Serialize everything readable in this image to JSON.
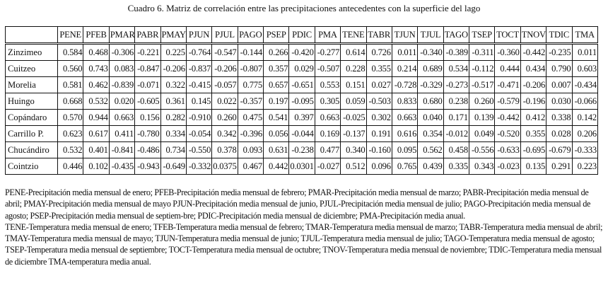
{
  "caption": "Cuadro 6. Matriz de correlación entre las precipitaciones antecedentes con la superficie del lago",
  "table": {
    "columns": [
      "",
      "PENE",
      "PFEB",
      "PMAR",
      "PABR",
      "PMAY",
      "PJUN",
      "PJUL",
      "PAGO",
      "PSEP",
      "PDIC",
      "PMA",
      "TENE",
      "TABR",
      "TJUN",
      "TJUL",
      "TAGO",
      "TSEP",
      "TOCT",
      "TNOV",
      "TDIC",
      "TMA"
    ],
    "rows": [
      {
        "name": "Zinzimeo",
        "values": [
          "0.584",
          "0.468",
          "-0.306",
          "-0.221",
          "0.225",
          "-0.764",
          "-0.547",
          "-0.144",
          "0.266",
          "-0.420",
          "-0.277",
          "0.614",
          "0.726",
          "0.011",
          "-0.340",
          "-0.389",
          "-0.311",
          "-0.360",
          "-0.442",
          "-0.235",
          "0.011"
        ]
      },
      {
        "name": "Cuitzeo",
        "values": [
          "0.560",
          "0.743",
          "0.083",
          "-0.847",
          "-0.206",
          "-0.837",
          "-0.206",
          "-0.807",
          "0.357",
          "0.029",
          "-0.507",
          "0.228",
          "0.355",
          "0.214",
          "0.689",
          "0.534",
          "-0.112",
          "0.444",
          "0.434",
          "0.790",
          "0.603"
        ]
      },
      {
        "name": "Morelia",
        "values": [
          "0.581",
          "0.462",
          "-0.839",
          "-0.071",
          "0.322",
          "-0.415",
          "-0.057",
          "0.775",
          "0.657",
          "-0.651",
          "0.553",
          "0.151",
          "0.027",
          "-0.728",
          "-0.329",
          "-0.273",
          "-0.517",
          "-0.471",
          "-0.206",
          "0.007",
          "-0.434"
        ]
      },
      {
        "name": "Huingo",
        "values": [
          "0.668",
          "0.532",
          "0.020",
          "-0.605",
          "0.361",
          "0.145",
          "0.022",
          "-0.357",
          "0.197",
          "-0.095",
          "0.305",
          "0.059",
          "-0.503",
          "0.833",
          "0.680",
          "0.238",
          "0.260",
          "-0.579",
          "-0.196",
          "0.030",
          "-0.066"
        ]
      },
      {
        "name": "Copándaro",
        "values": [
          "0.570",
          "0.944",
          "0.663",
          "0.156",
          "0.282",
          "-0.910",
          "0.260",
          "0.475",
          "0.541",
          "0.397",
          "0.663",
          "-0.025",
          "0.302",
          "0.663",
          "0.040",
          "0.171",
          "0.139",
          "-0.442",
          "0.412",
          "0.338",
          "0.142"
        ]
      },
      {
        "name": "Carrillo P.",
        "values": [
          "0.623",
          "0.617",
          "0.411",
          "-0.780",
          "0.334",
          "-0.054",
          "0.342",
          "-0.396",
          "0.056",
          "-0.044",
          "0.169",
          "-0.137",
          "0.191",
          "0.616",
          "0.354",
          "-0.012",
          "0.049",
          "-0.520",
          "0.355",
          "0.028",
          "0.206"
        ]
      },
      {
        "name": "Chucándiro",
        "values": [
          "0.532",
          "0.401",
          "-0.841",
          "-0.486",
          "0.734",
          "-0.550",
          "0.378",
          "0.093",
          "0.631",
          "-0.238",
          "0.477",
          "0.340",
          "-0.160",
          "0.095",
          "0.562",
          "0.458",
          "-0.556",
          "-0.633",
          "-0.695",
          "-0.679",
          "-0.333"
        ]
      },
      {
        "name": "Cointzio",
        "values": [
          "0.446",
          "0.102",
          "-0.435",
          "-0.943",
          "-0.649",
          "-0.332",
          "0.0375",
          "0.467",
          "0.442",
          "0.0301",
          "-0.027",
          "0.512",
          "0.096",
          "0.765",
          "0.439",
          "0.335",
          "0.343",
          "-0.023",
          "0.135",
          "0.291",
          "0.223"
        ]
      }
    ]
  },
  "notes": {
    "precipitation": "PENE-Precipitación media mensual de enero; PFEB-Precipitación media mensual de febrero; PMAR-Precipitación media mensual de marzo; PABR-Precipitación media mensual de abril; PMAY-Precipitación media mensual de mayo PJUN-Precipitación media mensual de junio, PJUL-Precipitación media mensual de julio; PAGO-Precipitación media mensual de agosto; PSEP-Precipitación media mensual de septiem-bre; PDIC-Precipitación media mensual de diciembre; PMA-Precipitación media anual.",
    "temperature": "TENE-Temperatura media mensual de enero; TFEB-Temperatura media mensual de febrero; TMAR-Temperatura media mensual de marzo; TABR-Temperatura media mensual de abril; TMAY-Temperatura media mensual de mayo; TJUN-Temperatura media mensual de junio; TJUL-Temperatura media mensual de julio; TAGO-Temperatura media mensual de agosto; TSEP-Temperatura media mensual de septiembre; TOCT-Temperatura media mensual de octubre; TNOV-Temperatura media mensual de noviembre; TDIC-Temperatura media mensual de diciembre TMA-temperatura media anual."
  }
}
